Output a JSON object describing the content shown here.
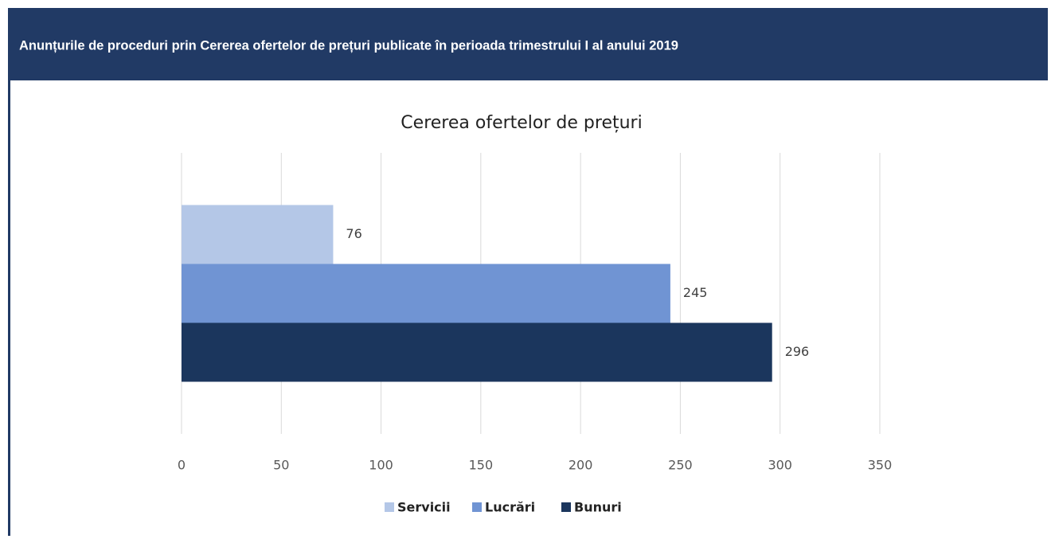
{
  "header": {
    "title": "Anunțurile de proceduri prin Cererea ofertelor de prețuri publicate în perioada trimestrului I al anului 2019"
  },
  "chart_data": {
    "type": "bar",
    "orientation": "horizontal",
    "title": "Cererea ofertelor de prețuri",
    "categories": [
      null
    ],
    "series": [
      {
        "name": "Servicii",
        "color": "#b4c7e7",
        "values": [
          76
        ]
      },
      {
        "name": "Lucrări",
        "color": "#7094d3",
        "values": [
          245
        ]
      },
      {
        "name": "Bunuri",
        "color": "#1b365d",
        "values": [
          296
        ]
      }
    ],
    "xlim": [
      0,
      350
    ],
    "xticks": [
      0,
      50,
      100,
      150,
      200,
      250,
      300,
      350
    ],
    "grid": true,
    "legend": "bottom"
  }
}
